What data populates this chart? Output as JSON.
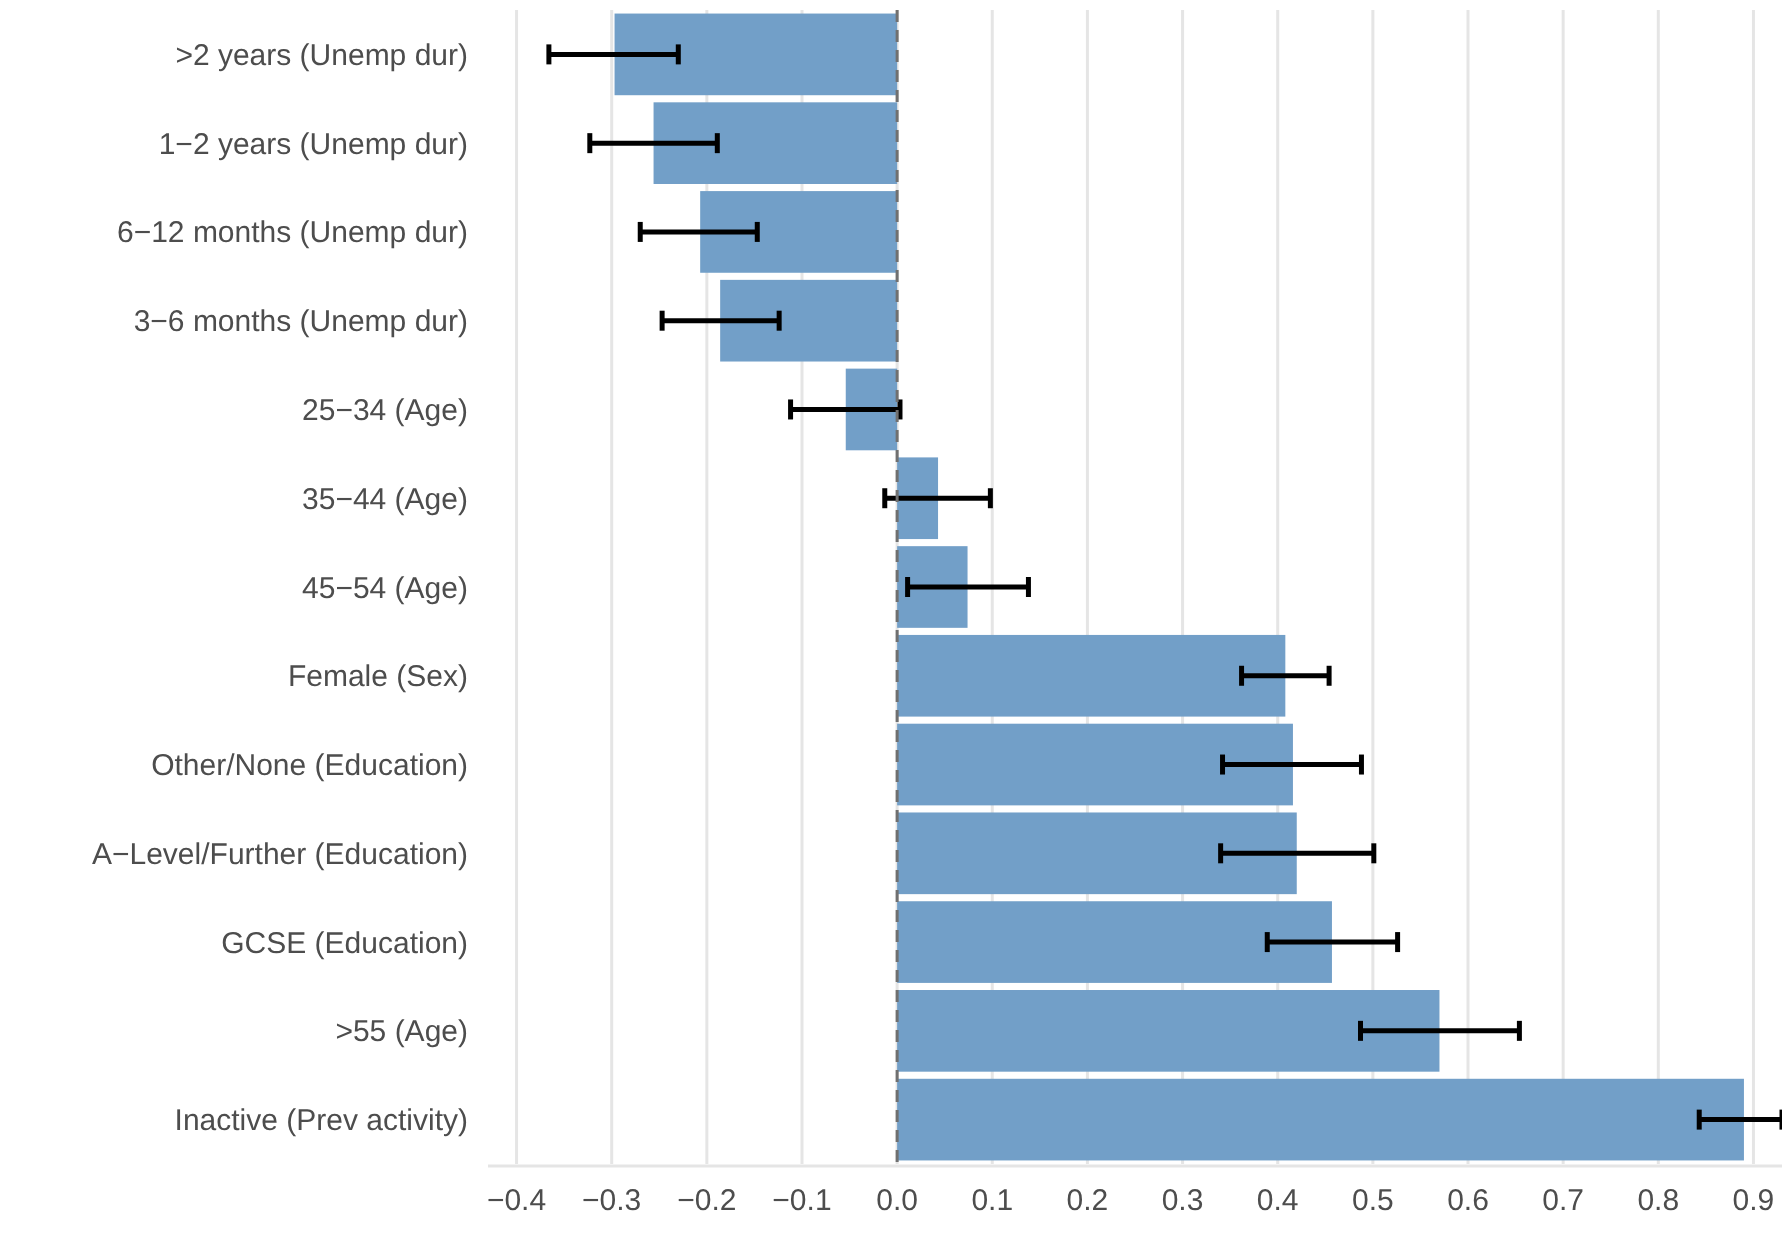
{
  "chart_data": {
    "type": "bar",
    "orientation": "horizontal",
    "categories": [
      ">2 years (Unemp dur)",
      "1−2 years (Unemp dur)",
      "6−12 months (Unemp dur)",
      "3−6 months (Unemp dur)",
      "25−34 (Age)",
      "35−44 (Age)",
      "45−54 (Age)",
      "Female (Sex)",
      "Other/None (Education)",
      "A−Level/Further (Education)",
      "GCSE (Education)",
      ">55 (Age)",
      "Inactive (Prev activity)"
    ],
    "values": [
      -0.297,
      -0.256,
      -0.207,
      -0.186,
      -0.054,
      0.043,
      0.074,
      0.408,
      0.416,
      0.42,
      0.457,
      0.57,
      0.89
    ],
    "errors": [
      [
        -0.366,
        -0.23
      ],
      [
        -0.323,
        -0.189
      ],
      [
        -0.27,
        -0.147
      ],
      [
        -0.247,
        -0.124
      ],
      [
        -0.112,
        0.003
      ],
      [
        -0.013,
        0.098
      ],
      [
        0.011,
        0.138
      ],
      [
        0.362,
        0.454
      ],
      [
        0.342,
        0.488
      ],
      [
        0.34,
        0.501
      ],
      [
        0.389,
        0.526
      ],
      [
        0.487,
        0.654
      ],
      [
        0.843,
        0.93
      ]
    ],
    "color": "#729fc8",
    "xlim": [
      -0.43,
      0.93
    ],
    "xticks": [
      {
        "value": -0.4,
        "label": "−0.4"
      },
      {
        "value": -0.3,
        "label": "−0.3"
      },
      {
        "value": -0.2,
        "label": "−0.2"
      },
      {
        "value": -0.1,
        "label": "−0.1"
      },
      {
        "value": 0,
        "label": "0.0"
      },
      {
        "value": 0.1,
        "label": "0.1"
      },
      {
        "value": 0.2,
        "label": "0.2"
      },
      {
        "value": 0.3,
        "label": "0.3"
      },
      {
        "value": 0.4,
        "label": "0.4"
      },
      {
        "value": 0.5,
        "label": "0.5"
      },
      {
        "value": 0.6,
        "label": "0.6"
      },
      {
        "value": 0.7,
        "label": "0.7"
      },
      {
        "value": 0.8,
        "label": "0.8"
      },
      {
        "value": 0.9,
        "label": "0.9"
      }
    ],
    "grid": "x",
    "ref_lines": [
      {
        "axis": "x",
        "value": 0,
        "line_style": "dashed",
        "color": "#707070"
      }
    ]
  }
}
